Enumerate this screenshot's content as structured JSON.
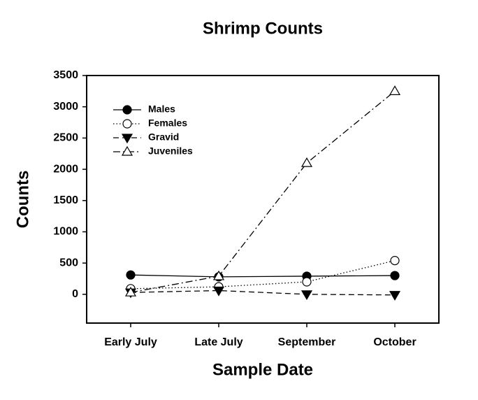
{
  "chart_data": {
    "type": "line",
    "title": "Shrimp Counts",
    "x_label": "Sample Date",
    "y_label": "Counts",
    "categories": [
      "Early July",
      "Late July",
      "September",
      "October"
    ],
    "series": [
      {
        "name": "Males",
        "color": "#000000",
        "marker": "circle",
        "filled": true,
        "dash": "solid",
        "values": [
          310,
          280,
          290,
          300
        ]
      },
      {
        "name": "Females",
        "color": "#000000",
        "marker": "circle",
        "filled": false,
        "dash": "dotted",
        "values": [
          90,
          120,
          200,
          540
        ]
      },
      {
        "name": "Gravid",
        "color": "#000000",
        "marker": "triangle-down",
        "filled": true,
        "dash": "dashed",
        "values": [
          30,
          60,
          0,
          -10
        ]
      },
      {
        "name": "Juveniles",
        "color": "#000000",
        "marker": "triangle-up",
        "filled": false,
        "dash": "dashdot",
        "values": [
          30,
          290,
          2100,
          3250
        ]
      }
    ],
    "ylim": [
      -460,
      3500
    ],
    "yticks": [
      0,
      500,
      1000,
      1500,
      2000,
      2500,
      3000,
      3500
    ],
    "legend": "upper left",
    "grid": false
  }
}
